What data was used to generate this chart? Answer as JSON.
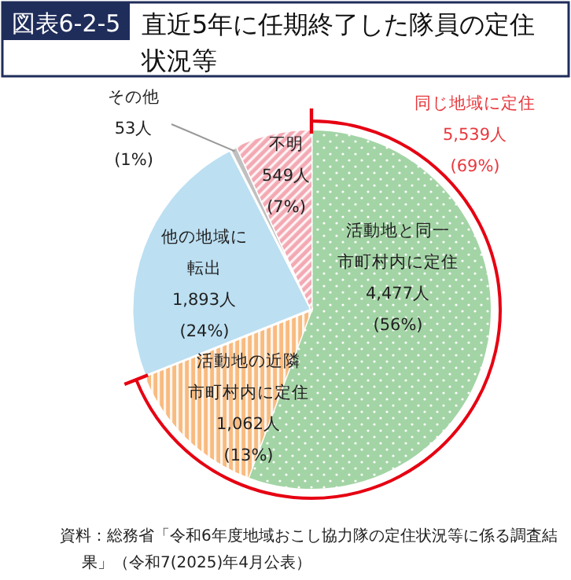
{
  "chart_data": {
    "type": "pie",
    "title": "直近5年に任期終了した隊員の定住状況等",
    "categories": [
      "活動地と同一市町村内に定住",
      "活動地の近隣市町村内に定住",
      "他の地域に転出",
      "その他",
      "不明"
    ],
    "values": [
      4477,
      1062,
      1893,
      53,
      549
    ],
    "value_labels": [
      "4,477人 (56%)",
      "1,062人 (13%)",
      "1,893人 (24%)",
      "53人 (1%)",
      "549人 (7%)"
    ],
    "colors": [
      "#a3d4a5",
      "#f8bb80",
      "#bcdff2",
      "#c0c0c0",
      "#f3a9b3"
    ],
    "legend": false,
    "annotations": [
      "図表6-2-5",
      "同じ地域に定住 5,539人 (69%)",
      "資料：総務省「令和6年度地域おこし協力隊の定住状況等に係る調査結果」（令和7(2025)年4月公表）"
    ]
  }
}
